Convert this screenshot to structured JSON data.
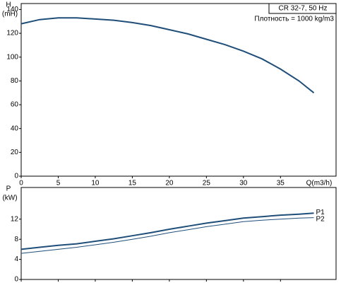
{
  "chart_data": [
    {
      "type": "line",
      "y_label": "H",
      "y_unit": "(mH)",
      "x_label": "Q(m3/h)",
      "annotations": [
        "CR 32-7, 50 Hz",
        "Плотность = 1000 kg/m3"
      ],
      "x": [
        0,
        2.5,
        5,
        7.5,
        10,
        12.5,
        15,
        17.5,
        20,
        22.5,
        25,
        27.5,
        30,
        32.5,
        35,
        37.5,
        39.5
      ],
      "series": [
        {
          "name": "H",
          "color": "#1f4e79",
          "values": [
            128,
            131.5,
            133,
            133,
            132,
            131,
            129,
            126.5,
            123,
            119.5,
            115,
            110.5,
            105,
            98.5,
            90,
            80,
            70
          ]
        }
      ],
      "xlim": [
        0,
        42.5
      ],
      "xticks": [
        0,
        5,
        10,
        15,
        20,
        25,
        30,
        35
      ],
      "ylim": [
        0,
        145
      ],
      "yticks": [
        0,
        20,
        40,
        60,
        80,
        100,
        120,
        140
      ]
    },
    {
      "type": "line",
      "y_label": "P",
      "y_unit": "(kW)",
      "x": [
        0,
        2.5,
        5,
        7.5,
        10,
        12.5,
        15,
        17.5,
        20,
        22.5,
        25,
        27.5,
        30,
        32.5,
        35,
        37.5,
        39.5
      ],
      "series": [
        {
          "name": "P1",
          "color": "#1f4e79",
          "width": 2,
          "values": [
            6.0,
            6.4,
            6.8,
            7.1,
            7.6,
            8.1,
            8.7,
            9.3,
            10.0,
            10.6,
            11.2,
            11.7,
            12.2,
            12.5,
            12.8,
            13.0,
            13.2
          ]
        },
        {
          "name": "P2",
          "color": "#1f4e79",
          "width": 1,
          "values": [
            5.2,
            5.6,
            6.0,
            6.4,
            6.9,
            7.4,
            8.0,
            8.6,
            9.3,
            9.9,
            10.5,
            11.0,
            11.5,
            11.8,
            12.0,
            12.2,
            12.3
          ]
        }
      ],
      "xlim": [
        0,
        42.5
      ],
      "ylim": [
        0,
        18.3
      ],
      "yticks": [
        0,
        4,
        8,
        12
      ]
    }
  ]
}
